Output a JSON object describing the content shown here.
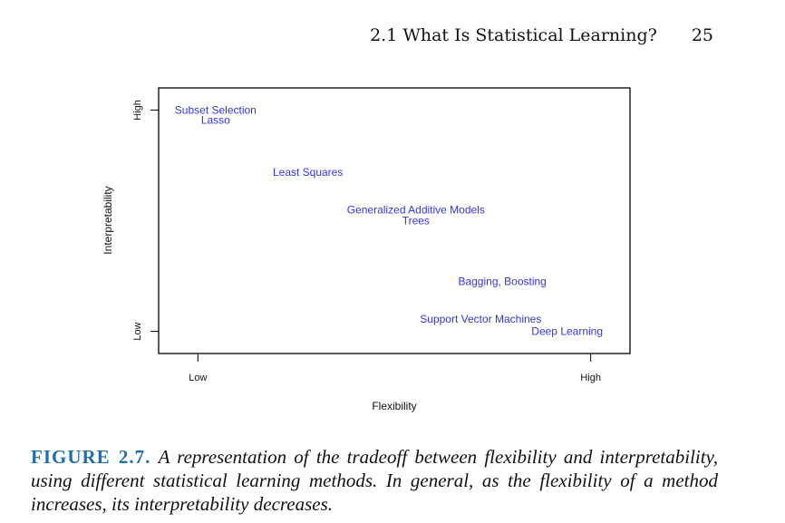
{
  "header": {
    "section_title": "2.1 What Is Statistical Learning?",
    "page_number": "25"
  },
  "chart_data": {
    "type": "scatter",
    "title": "",
    "xlabel": "Flexibility",
    "ylabel": "Interpretability",
    "x_ticks": [
      {
        "value": 0,
        "label": "Low"
      },
      {
        "value": 1,
        "label": "High"
      }
    ],
    "y_ticks": [
      {
        "value": 0,
        "label": "Low"
      },
      {
        "value": 1,
        "label": "High"
      }
    ],
    "xlim": [
      -0.1,
      1.1
    ],
    "ylim": [
      -0.1,
      1.1
    ],
    "grid": false,
    "point_color": "#3333ee",
    "points": [
      {
        "label": "Subset Selection",
        "x": 0.045,
        "y": 1.0
      },
      {
        "label": "Lasso",
        "x": 0.045,
        "y": 0.955
      },
      {
        "label": "Least Squares",
        "x": 0.28,
        "y": 0.72
      },
      {
        "label": "Generalized Additive Models",
        "x": 0.555,
        "y": 0.55
      },
      {
        "label": "Trees",
        "x": 0.555,
        "y": 0.5
      },
      {
        "label": "Bagging, Boosting",
        "x": 0.775,
        "y": 0.225
      },
      {
        "label": "Support Vector Machines",
        "x": 0.72,
        "y": 0.055
      },
      {
        "label": "Deep Learning",
        "x": 0.94,
        "y": 0.0
      }
    ]
  },
  "caption": {
    "label": "FIGURE 2.7.",
    "text": "A representation of the tradeoff between flexibility and interpretability, using different statistical learning methods. In general, as the flexibility of a method increases, its interpretability decreases."
  }
}
